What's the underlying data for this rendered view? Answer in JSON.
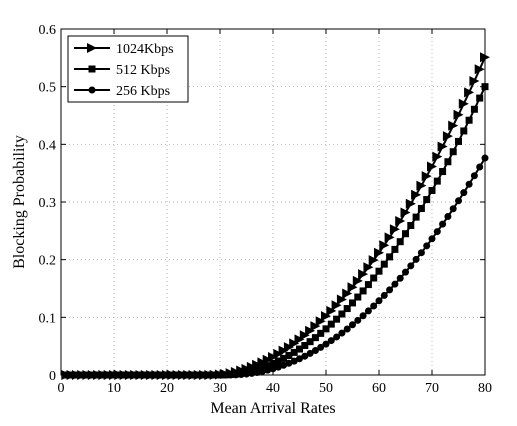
{
  "chart_data": {
    "type": "line",
    "title": "",
    "xlabel": "Mean Arrival Rates",
    "ylabel": "Blocking Probability",
    "xlim": [
      0,
      80
    ],
    "ylim": [
      0,
      0.6
    ],
    "xticks": [
      0,
      10,
      20,
      30,
      40,
      50,
      60,
      70,
      80
    ],
    "yticks": [
      0,
      0.1,
      0.2,
      0.3,
      0.4,
      0.5,
      0.6
    ],
    "xtick_labels": [
      "0",
      "10",
      "20",
      "30",
      "40",
      "50",
      "60",
      "70",
      "80"
    ],
    "ytick_labels": [
      "0",
      "0.1",
      "0.2",
      "0.3",
      "0.4",
      "0.5",
      "0.6"
    ],
    "grid": true,
    "legend_position": "top-left",
    "x": [
      1,
      2,
      3,
      4,
      5,
      6,
      7,
      8,
      9,
      10,
      11,
      12,
      13,
      14,
      15,
      16,
      17,
      18,
      19,
      20,
      21,
      22,
      23,
      24,
      25,
      26,
      27,
      28,
      29,
      30,
      31,
      32,
      33,
      34,
      35,
      36,
      37,
      38,
      39,
      40,
      41,
      42,
      43,
      44,
      45,
      46,
      47,
      48,
      49,
      50,
      51,
      52,
      53,
      54,
      55,
      56,
      57,
      58,
      59,
      60,
      61,
      62,
      63,
      64,
      65,
      66,
      67,
      68,
      69,
      70,
      71,
      72,
      73,
      74,
      75,
      76,
      77,
      78,
      79,
      80
    ],
    "series": [
      {
        "name": "1024Kbps",
        "marker": "triangle-right",
        "values": [
          0,
          0,
          0,
          0,
          0,
          0,
          0,
          0,
          0,
          0,
          0,
          0,
          0,
          0,
          0,
          0,
          0,
          0,
          0,
          0,
          0,
          0,
          0,
          0,
          0,
          0,
          0,
          0,
          0.0002,
          0.0008,
          0.0018,
          0.0033,
          0.0053,
          0.0078,
          0.0107,
          0.014,
          0.0177,
          0.0219,
          0.0264,
          0.0313,
          0.0366,
          0.0423,
          0.0484,
          0.0549,
          0.0618,
          0.069,
          0.0767,
          0.0847,
          0.0932,
          0.102,
          0.1112,
          0.1209,
          0.1309,
          0.1413,
          0.1521,
          0.1633,
          0.1749,
          0.1868,
          0.1992,
          0.212,
          0.2251,
          0.2387,
          0.2527,
          0.267,
          0.2818,
          0.2969,
          0.3125,
          0.3284,
          0.3448,
          0.3615,
          0.3787,
          0.3962,
          0.4142,
          0.4325,
          0.4513,
          0.4704,
          0.49,
          0.5099,
          0.5303,
          0.551
        ]
      },
      {
        "name": "512 Kbps",
        "marker": "square",
        "values": [
          0,
          0,
          0,
          0,
          0,
          0,
          0,
          0,
          0,
          0,
          0,
          0,
          0,
          0,
          0,
          0,
          0,
          0,
          0,
          0,
          0,
          0,
          0,
          0,
          0,
          0,
          0,
          0,
          0,
          0,
          0.0002,
          0.0008,
          0.0018,
          0.0032,
          0.005,
          0.0072,
          0.0098,
          0.0128,
          0.0162,
          0.02,
          0.0242,
          0.0288,
          0.0338,
          0.0392,
          0.045,
          0.0512,
          0.0578,
          0.0648,
          0.0722,
          0.08,
          0.0882,
          0.0968,
          0.1058,
          0.1152,
          0.125,
          0.1352,
          0.1458,
          0.1568,
          0.1682,
          0.18,
          0.1922,
          0.2048,
          0.2178,
          0.2312,
          0.245,
          0.2592,
          0.2738,
          0.2888,
          0.3042,
          0.32,
          0.3362,
          0.3528,
          0.3698,
          0.3872,
          0.405,
          0.4232,
          0.4418,
          0.4608,
          0.4802,
          0.5
        ]
      },
      {
        "name": "256 Kbps",
        "marker": "circle",
        "values": [
          0,
          0,
          0,
          0,
          0,
          0,
          0,
          0,
          0,
          0,
          0,
          0,
          0,
          0,
          0,
          0,
          0,
          0,
          0,
          0,
          0,
          0,
          0,
          0,
          0,
          0,
          0,
          0,
          0,
          0,
          0,
          0,
          0.0002,
          0.0008,
          0.0016,
          0.0028,
          0.0043,
          0.0062,
          0.0084,
          0.0109,
          0.0137,
          0.0168,
          0.0203,
          0.0241,
          0.0282,
          0.0326,
          0.0374,
          0.0425,
          0.0479,
          0.0536,
          0.0597,
          0.066,
          0.0727,
          0.0798,
          0.0871,
          0.0948,
          0.1028,
          0.1111,
          0.1197,
          0.1287,
          0.138,
          0.1476,
          0.1575,
          0.1678,
          0.1784,
          0.1893,
          0.2005,
          0.2121,
          0.224,
          0.2362,
          0.2487,
          0.2616,
          0.2748,
          0.2883,
          0.3021,
          0.3163,
          0.3308,
          0.3456,
          0.3607,
          0.3762
        ]
      }
    ]
  }
}
